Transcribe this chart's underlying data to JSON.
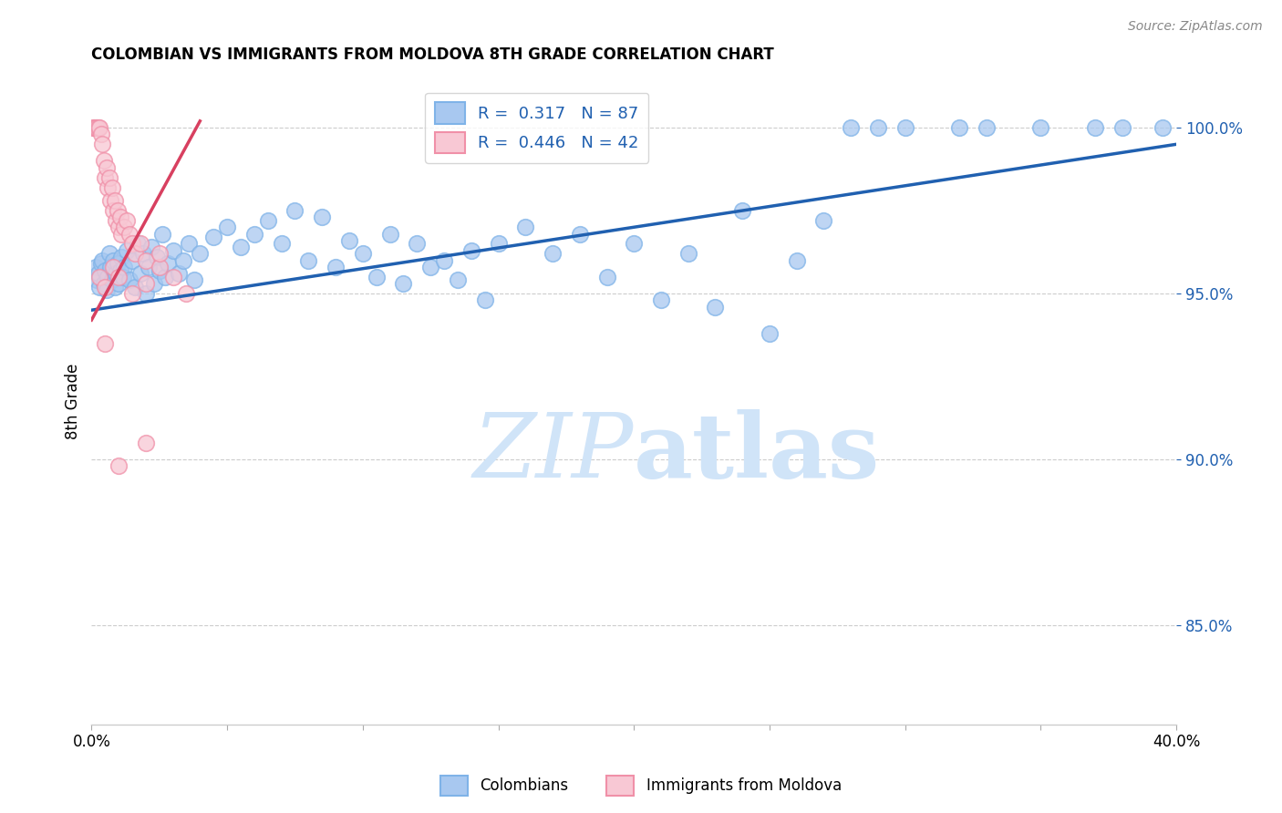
{
  "title": "COLOMBIAN VS IMMIGRANTS FROM MOLDOVA 8TH GRADE CORRELATION CHART",
  "source": "Source: ZipAtlas.com",
  "ylabel": "8th Grade",
  "xlim": [
    0.0,
    40.0
  ],
  "ylim": [
    82.0,
    101.5
  ],
  "yticks": [
    85.0,
    90.0,
    95.0,
    100.0
  ],
  "ytick_labels": [
    "85.0%",
    "90.0%",
    "95.0%",
    "100.0%"
  ],
  "xticks": [
    0.0,
    5.0,
    10.0,
    15.0,
    20.0,
    25.0,
    30.0,
    35.0,
    40.0
  ],
  "blue_R": "0.317",
  "blue_N": "87",
  "pink_R": "0.446",
  "pink_N": "42",
  "blue_color": "#a8c8f0",
  "blue_edge_color": "#7fb3e8",
  "pink_color": "#f8c8d4",
  "pink_edge_color": "#f090a8",
  "trendline_blue": "#2060b0",
  "trendline_pink": "#d84060",
  "watermark_color": "#d0e4f8",
  "legend_label_blue": "Colombians",
  "legend_label_pink": "Immigrants from Moldova",
  "blue_scatter": [
    [
      0.15,
      95.8
    ],
    [
      0.2,
      95.4
    ],
    [
      0.25,
      95.6
    ],
    [
      0.3,
      95.2
    ],
    [
      0.35,
      95.9
    ],
    [
      0.4,
      96.0
    ],
    [
      0.45,
      95.3
    ],
    [
      0.5,
      95.7
    ],
    [
      0.55,
      95.1
    ],
    [
      0.6,
      95.5
    ],
    [
      0.65,
      96.2
    ],
    [
      0.7,
      95.8
    ],
    [
      0.75,
      95.4
    ],
    [
      0.8,
      96.0
    ],
    [
      0.85,
      95.2
    ],
    [
      0.9,
      95.6
    ],
    [
      0.95,
      95.9
    ],
    [
      1.0,
      95.3
    ],
    [
      1.05,
      95.7
    ],
    [
      1.1,
      96.1
    ],
    [
      1.15,
      95.5
    ],
    [
      1.2,
      95.8
    ],
    [
      1.3,
      96.3
    ],
    [
      1.4,
      95.4
    ],
    [
      1.5,
      96.0
    ],
    [
      1.6,
      95.2
    ],
    [
      1.7,
      96.5
    ],
    [
      1.8,
      95.6
    ],
    [
      1.9,
      96.2
    ],
    [
      2.0,
      95.0
    ],
    [
      2.1,
      95.8
    ],
    [
      2.2,
      96.4
    ],
    [
      2.3,
      95.3
    ],
    [
      2.4,
      96.1
    ],
    [
      2.5,
      95.7
    ],
    [
      2.6,
      96.8
    ],
    [
      2.7,
      95.5
    ],
    [
      2.8,
      95.9
    ],
    [
      3.0,
      96.3
    ],
    [
      3.2,
      95.6
    ],
    [
      3.4,
      96.0
    ],
    [
      3.6,
      96.5
    ],
    [
      3.8,
      95.4
    ],
    [
      4.0,
      96.2
    ],
    [
      4.5,
      96.7
    ],
    [
      5.0,
      97.0
    ],
    [
      5.5,
      96.4
    ],
    [
      6.0,
      96.8
    ],
    [
      6.5,
      97.2
    ],
    [
      7.0,
      96.5
    ],
    [
      7.5,
      97.5
    ],
    [
      8.0,
      96.0
    ],
    [
      8.5,
      97.3
    ],
    [
      9.0,
      95.8
    ],
    [
      9.5,
      96.6
    ],
    [
      10.0,
      96.2
    ],
    [
      10.5,
      95.5
    ],
    [
      11.0,
      96.8
    ],
    [
      11.5,
      95.3
    ],
    [
      12.0,
      96.5
    ],
    [
      12.5,
      95.8
    ],
    [
      13.0,
      96.0
    ],
    [
      13.5,
      95.4
    ],
    [
      14.0,
      96.3
    ],
    [
      14.5,
      94.8
    ],
    [
      15.0,
      96.5
    ],
    [
      16.0,
      97.0
    ],
    [
      17.0,
      96.2
    ],
    [
      18.0,
      96.8
    ],
    [
      19.0,
      95.5
    ],
    [
      20.0,
      96.5
    ],
    [
      21.0,
      94.8
    ],
    [
      22.0,
      96.2
    ],
    [
      23.0,
      94.6
    ],
    [
      24.0,
      97.5
    ],
    [
      25.0,
      93.8
    ],
    [
      26.0,
      96.0
    ],
    [
      27.0,
      97.2
    ],
    [
      28.0,
      100.0
    ],
    [
      29.0,
      100.0
    ],
    [
      30.0,
      100.0
    ],
    [
      32.0,
      100.0
    ],
    [
      33.0,
      100.0
    ],
    [
      35.0,
      100.0
    ],
    [
      37.0,
      100.0
    ],
    [
      38.0,
      100.0
    ],
    [
      39.5,
      100.0
    ]
  ],
  "pink_scatter": [
    [
      0.05,
      100.0
    ],
    [
      0.1,
      100.0
    ],
    [
      0.15,
      100.0
    ],
    [
      0.2,
      100.0
    ],
    [
      0.25,
      100.0
    ],
    [
      0.3,
      100.0
    ],
    [
      0.35,
      99.8
    ],
    [
      0.4,
      99.5
    ],
    [
      0.45,
      99.0
    ],
    [
      0.5,
      98.5
    ],
    [
      0.55,
      98.8
    ],
    [
      0.6,
      98.2
    ],
    [
      0.65,
      98.5
    ],
    [
      0.7,
      97.8
    ],
    [
      0.75,
      98.2
    ],
    [
      0.8,
      97.5
    ],
    [
      0.85,
      97.8
    ],
    [
      0.9,
      97.2
    ],
    [
      0.95,
      97.5
    ],
    [
      1.0,
      97.0
    ],
    [
      1.05,
      97.3
    ],
    [
      1.1,
      96.8
    ],
    [
      1.2,
      97.0
    ],
    [
      1.3,
      97.2
    ],
    [
      1.4,
      96.8
    ],
    [
      1.5,
      96.5
    ],
    [
      1.6,
      96.2
    ],
    [
      1.8,
      96.5
    ],
    [
      2.0,
      96.0
    ],
    [
      2.5,
      95.8
    ],
    [
      3.0,
      95.5
    ],
    [
      0.3,
      95.5
    ],
    [
      0.5,
      95.2
    ],
    [
      0.8,
      95.8
    ],
    [
      1.0,
      95.5
    ],
    [
      1.5,
      95.0
    ],
    [
      2.0,
      95.3
    ],
    [
      2.5,
      96.2
    ],
    [
      1.0,
      89.8
    ],
    [
      2.0,
      90.5
    ],
    [
      0.5,
      93.5
    ],
    [
      3.5,
      95.0
    ]
  ],
  "blue_trend_x": [
    0.0,
    40.0
  ],
  "blue_trend_y": [
    94.5,
    99.5
  ],
  "pink_trend_x": [
    0.0,
    4.0
  ],
  "pink_trend_y": [
    94.2,
    100.2
  ]
}
